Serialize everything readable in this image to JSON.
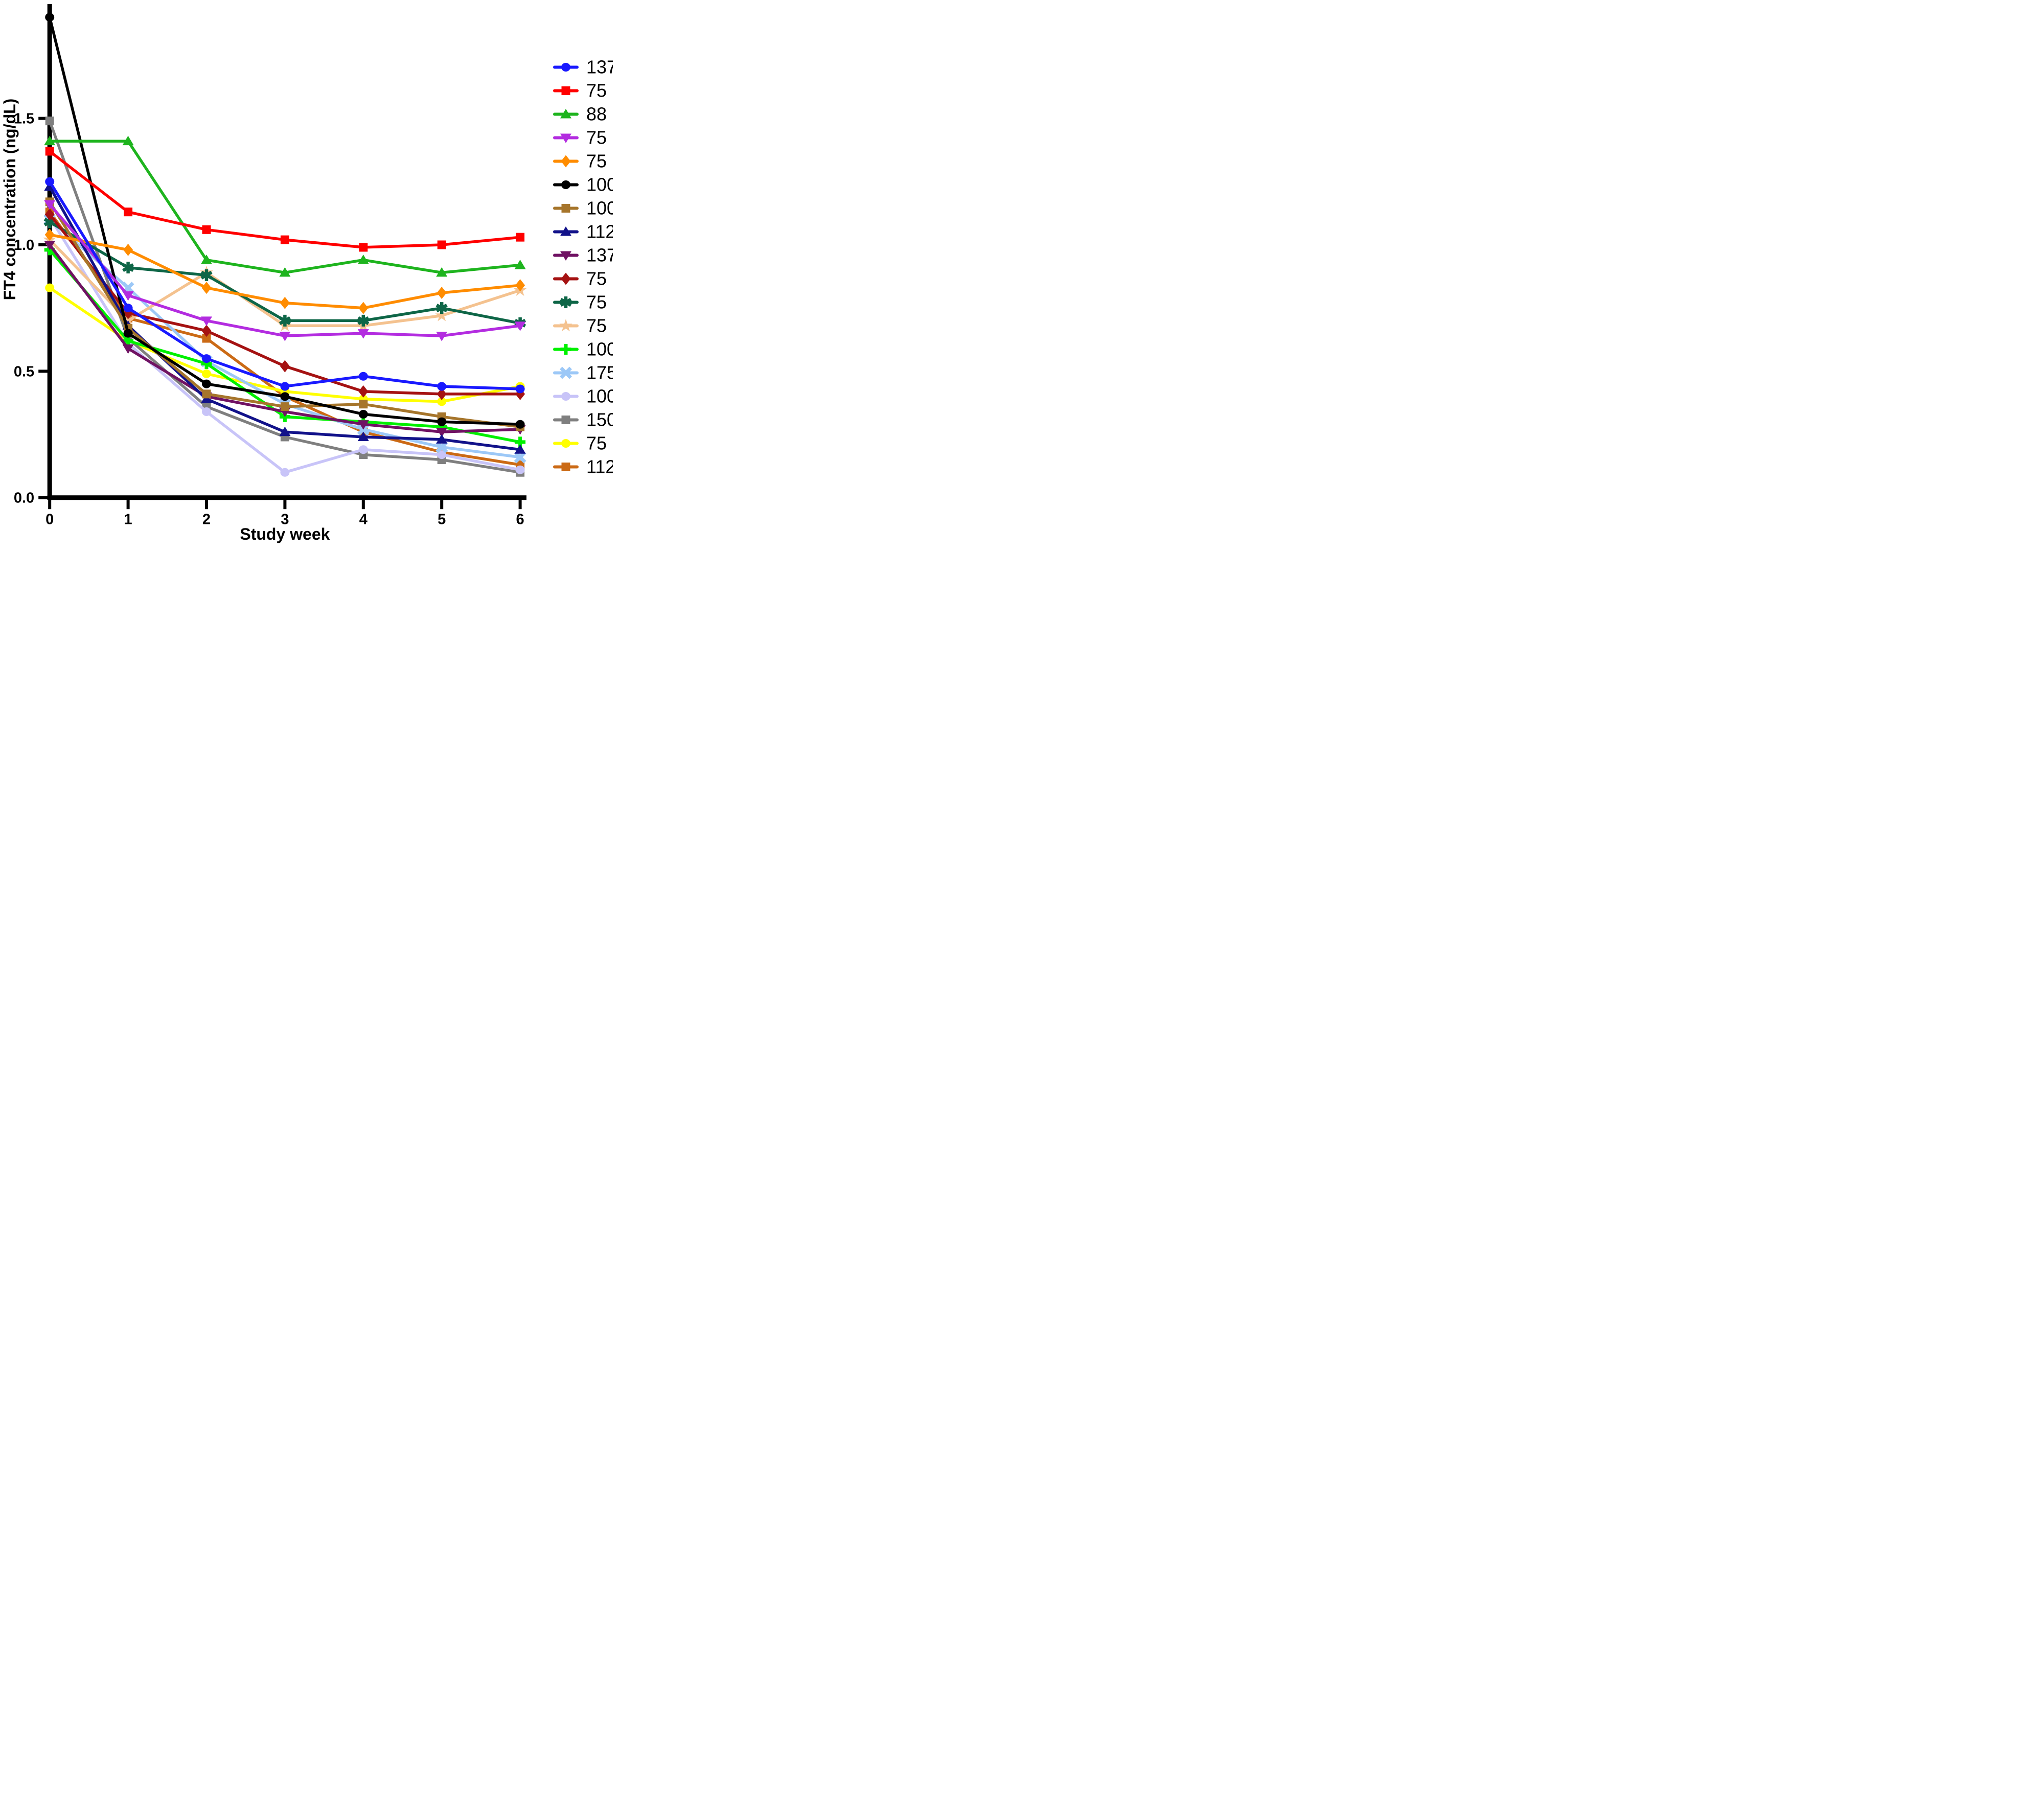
{
  "figure": {
    "background": "#ffffff",
    "x_axis": {
      "title": "Study week",
      "tick_labels": [
        "0",
        "1",
        "2",
        "3",
        "4",
        "5",
        "6"
      ]
    },
    "y_axis": {
      "title": "FT4 concentration (ng/dL)",
      "tick_labels": [
        "0.0",
        "0.5",
        "1.0",
        "1.5"
      ]
    }
  },
  "chart_data": {
    "type": "line",
    "x": [
      0,
      1,
      2,
      3,
      4,
      5,
      6
    ],
    "xlabel": "Study week",
    "ylabel": "FT4 concentration (ng/dL)",
    "xlim": [
      0,
      6
    ],
    "ylim": [
      0,
      1.95
    ],
    "yticks": [
      0,
      0.5,
      1.0,
      1.5
    ],
    "grid": false,
    "legend_position": "right",
    "series": [
      {
        "name": "137",
        "marker": "circle",
        "color": "#1919FF",
        "values": [
          1.25,
          0.75,
          0.55,
          0.44,
          0.48,
          0.44,
          0.43
        ]
      },
      {
        "name": "75",
        "marker": "square",
        "color": "#FF0000",
        "values": [
          1.37,
          1.13,
          1.06,
          1.02,
          0.99,
          1.0,
          1.03
        ]
      },
      {
        "name": "88",
        "marker": "triangle-up",
        "color": "#1EB41E",
        "values": [
          1.41,
          1.41,
          0.94,
          0.89,
          0.94,
          0.89,
          0.92
        ]
      },
      {
        "name": "75",
        "marker": "triangle-down",
        "color": "#B32CE0",
        "values": [
          1.16,
          0.8,
          0.7,
          0.64,
          0.65,
          0.64,
          0.68
        ]
      },
      {
        "name": "75",
        "marker": "diamond",
        "color": "#FF8C00",
        "values": [
          1.04,
          0.98,
          0.83,
          0.77,
          0.75,
          0.81,
          0.84
        ]
      },
      {
        "name": "100",
        "marker": "circle",
        "color": "#000000",
        "values": [
          1.9,
          0.65,
          0.45,
          0.4,
          0.33,
          0.3,
          0.29
        ]
      },
      {
        "name": "100",
        "marker": "square",
        "color": "#A6752B",
        "values": [
          1.17,
          0.67,
          0.41,
          0.36,
          0.37,
          0.32,
          0.28
        ]
      },
      {
        "name": "112",
        "marker": "triangle-up",
        "color": "#12128A",
        "values": [
          1.23,
          0.68,
          0.39,
          0.26,
          0.24,
          0.23,
          0.19
        ]
      },
      {
        "name": "137",
        "marker": "triangle-down",
        "color": "#701263",
        "values": [
          1.0,
          0.59,
          0.4,
          0.34,
          0.29,
          0.26,
          0.27
        ]
      },
      {
        "name": "75",
        "marker": "diamond",
        "color": "#A51212",
        "values": [
          1.12,
          0.73,
          0.66,
          0.52,
          0.42,
          0.41,
          0.41
        ]
      },
      {
        "name": "75",
        "marker": "asterisk",
        "color": "#0E6647",
        "values": [
          1.09,
          0.91,
          0.88,
          0.7,
          0.7,
          0.75,
          0.69
        ]
      },
      {
        "name": "75",
        "marker": "star",
        "color": "#F4C28F",
        "values": [
          1.02,
          0.7,
          0.89,
          0.68,
          0.68,
          0.72,
          0.82
        ]
      },
      {
        "name": "100",
        "marker": "plus",
        "color": "#00F000",
        "values": [
          0.98,
          0.62,
          0.53,
          0.32,
          0.3,
          0.28,
          0.22
        ]
      },
      {
        "name": "175",
        "marker": "x",
        "color": "#9CC8F7",
        "values": [
          1.1,
          0.83,
          0.54,
          0.37,
          0.27,
          0.2,
          0.16
        ]
      },
      {
        "name": "100",
        "marker": "circle",
        "color": "#C8C4F8",
        "values": [
          1.11,
          0.61,
          0.34,
          0.1,
          0.19,
          0.17,
          0.11
        ]
      },
      {
        "name": "150",
        "marker": "square",
        "color": "#7F7F7F",
        "values": [
          1.49,
          0.63,
          0.36,
          0.24,
          0.17,
          0.15,
          0.1
        ]
      },
      {
        "name": "75",
        "marker": "circle",
        "color": "#FFFF00",
        "values": [
          0.83,
          0.62,
          0.49,
          0.42,
          0.39,
          0.38,
          0.44
        ]
      },
      {
        "name": "112",
        "marker": "square",
        "color": "#CB6A15",
        "values": [
          1.13,
          0.71,
          0.63,
          0.4,
          0.26,
          0.18,
          0.13
        ]
      }
    ]
  }
}
